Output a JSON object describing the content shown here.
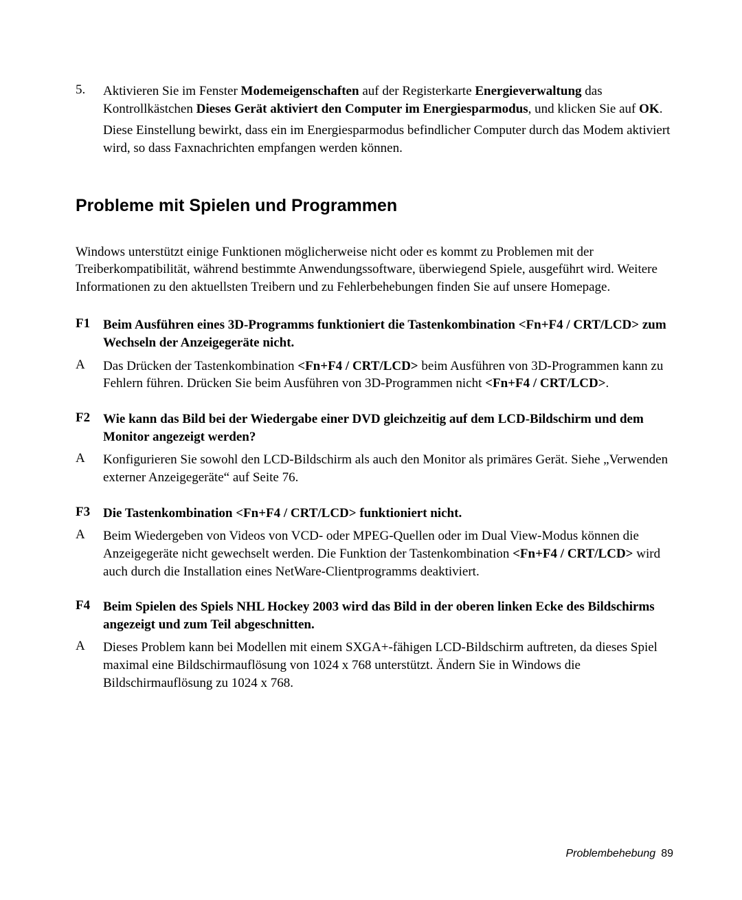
{
  "step": {
    "marker": "5.",
    "p1_a": "Aktivieren Sie im Fenster ",
    "p1_b": "Modemeigenschaften",
    "p1_c": " auf der Registerkarte ",
    "p1_d": "Energieverwaltung",
    "p1_e": " das Kontrollkästchen ",
    "p1_f": "Dieses Gerät aktiviert den Computer im Energiesparmodus",
    "p1_g": ", und klicken Sie auf ",
    "p1_h": "OK",
    "p1_i": ".",
    "p2": "Diese Einstellung bewirkt, dass ein im Energiesparmodus befindlicher Computer durch das Modem aktiviert wird, so dass Faxnachrichten empfangen werden können."
  },
  "heading": "Probleme mit Spielen und Programmen",
  "intro": "Windows unterstützt einige Funktionen möglicherweise nicht oder es kommt zu Problemen mit der Treiberkompatibilität, während bestimmte Anwendungssoftware, überwiegend Spiele, ausgeführt wird. Weitere Informationen zu den aktuellsten Treibern und zu Fehlerbehebungen finden Sie auf unsere Homepage.",
  "faq": {
    "f1": {
      "marker": "F1",
      "q": "Beim Ausführen eines 3D-Programms funktioniert die Tastenkombination <Fn+F4 / CRT/LCD> zum Wechseln der Anzeigegeräte nicht.",
      "a_marker": "A",
      "a_1": "Das Drücken der Tastenkombination ",
      "a_2": "<Fn+F4 / CRT/LCD>",
      "a_3": " beim Ausführen von 3D-Programmen kann zu Fehlern führen. Drücken Sie beim Ausführen von 3D-Programmen nicht ",
      "a_4": "<Fn+F4 / CRT/LCD>",
      "a_5": "."
    },
    "f2": {
      "marker": "F2",
      "q": "Wie kann das Bild bei der Wiedergabe einer DVD gleichzeitig auf dem LCD-Bildschirm und dem Monitor angezeigt werden?",
      "a_marker": "A",
      "a": "Konfigurieren Sie sowohl den LCD-Bildschirm als auch den Monitor als primäres Gerät. Siehe „Verwenden externer Anzeigegeräte“ auf Seite 76."
    },
    "f3": {
      "marker": "F3",
      "q": "Die Tastenkombination <Fn+F4 / CRT/LCD> funktioniert nicht.",
      "a_marker": "A",
      "a_1": "Beim Wiedergeben von Videos von VCD- oder MPEG-Quellen oder im Dual View-Modus können die Anzeigegeräte nicht gewechselt werden. Die Funktion der Tastenkombination ",
      "a_2": "<Fn+F4 / CRT/LCD>",
      "a_3": " wird auch durch die Installation eines NetWare-Clientprogramms deaktiviert."
    },
    "f4": {
      "marker": "F4",
      "q": "Beim Spielen des Spiels NHL Hockey 2003 wird das Bild in der oberen linken Ecke des Bildschirms angezeigt und zum Teil abgeschnitten.",
      "a_marker": "A",
      "a": "Dieses Problem kann bei Modellen mit einem SXGA+-fähigen LCD-Bildschirm auftreten, da dieses Spiel maximal eine Bildschirmauflösung von 1024 x 768 unterstützt. Ändern Sie in Windows die Bildschirmauflösung zu 1024 x 768."
    }
  },
  "footer": {
    "label": "Problembehebung",
    "page": "89"
  }
}
